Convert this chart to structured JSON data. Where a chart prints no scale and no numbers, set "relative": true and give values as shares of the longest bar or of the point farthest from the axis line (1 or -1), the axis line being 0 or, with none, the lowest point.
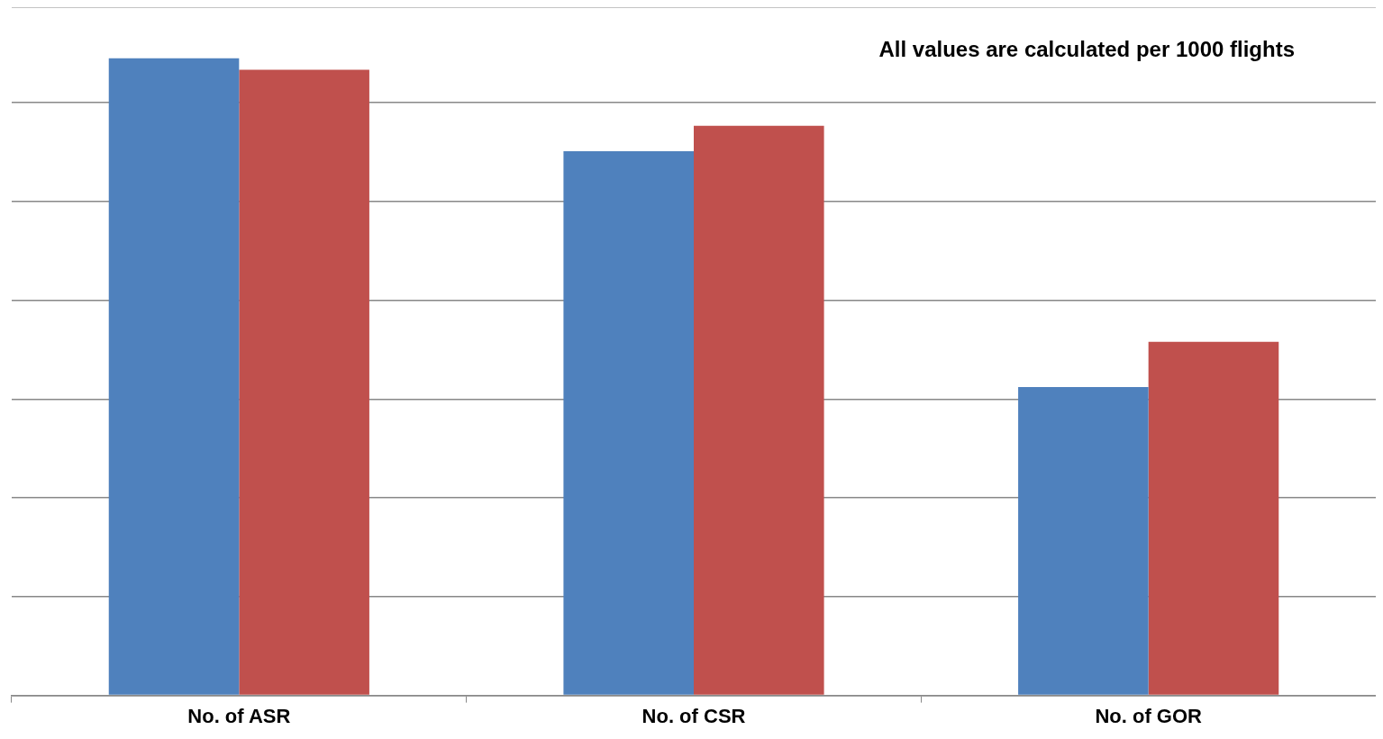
{
  "chart_data": {
    "type": "bar",
    "relative": true,
    "categories": [
      "No. of ASR",
      "No. of CSR",
      "No. of GOR"
    ],
    "series": [
      {
        "color": "#4f81bd",
        "values": [
          1,
          0.854,
          0.484
        ]
      },
      {
        "color": "#c0504d",
        "values": [
          0.982,
          0.894,
          0.555
        ]
      }
    ],
    "annotations": [
      "All values are calculated per 1000 flights"
    ],
    "grid": "y",
    "legend": false
  }
}
